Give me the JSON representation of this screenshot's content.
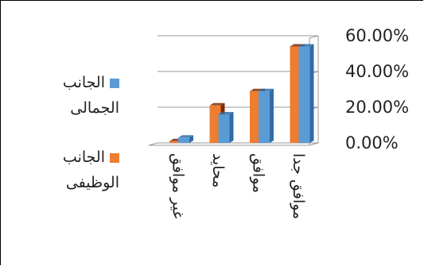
{
  "chart_data": {
    "type": "bar",
    "categories": [
      "غير موافق",
      "محايد",
      "موافق",
      "موافق جدا"
    ],
    "series": [
      {
        "name": "الجانب الوظيفى",
        "values": [
          1.0,
          21.0,
          29.0,
          54.0
        ]
      },
      {
        "name": "الجانب الجمالى",
        "values": [
          3.0,
          16.0,
          29.0,
          54.0
        ]
      }
    ],
    "y_ticks": [
      "0.00%",
      "20.00%",
      "40.00%",
      "60.00%"
    ],
    "ylim": [
      0,
      60
    ],
    "grid": true,
    "legend_position": "left",
    "colors": {
      "functional_front": "#ED7D31",
      "functional_side": "#7F2A05",
      "aesthetic_front": "#5B9BD5",
      "aesthetic_side": "#2E6DA8",
      "grid": "#9A9A9A"
    }
  },
  "legend": {
    "aesthetic": "الجانب الجمالى",
    "functional": "الجانب الوظيفى"
  }
}
